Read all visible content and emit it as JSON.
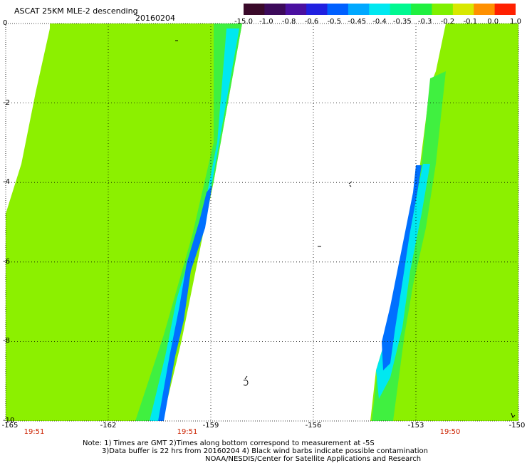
{
  "header": {
    "title": "ASCAT 25KM MLE-2 descending",
    "date": "20160204"
  },
  "colorbar": {
    "labels": [
      "-15.0",
      "-1.0",
      "-0.8",
      "-0.6",
      "-0.5",
      "-0.45",
      "-0.4",
      "-0.35",
      "-0.3",
      "-0.2",
      "-0.1",
      "0.0",
      "1.0"
    ],
    "colors": [
      "#3a0a2a",
      "#3c0a5a",
      "#4a10a0",
      "#2020e0",
      "#0060ff",
      "#00a8ff",
      "#00e8f0",
      "#00f890",
      "#20f040",
      "#80f000",
      "#d8e800",
      "#ff9000",
      "#ff2000"
    ]
  },
  "axes": {
    "y_labels": [
      "0",
      "-2",
      "-4",
      "-6",
      "-8",
      "-10"
    ],
    "x_labels": [
      "-165",
      "-162",
      "-159",
      "-156",
      "-153",
      "-150"
    ],
    "time_labels": [
      "19:51",
      "19:51",
      "19:50"
    ]
  },
  "notes": {
    "line1": "Note: 1) Times are GMT 2)Times along bottom correspond to measurement at -5S",
    "line2": "3)Data buffer is 22 hrs from 20160204 4) Black wind barbs indicate possible contamination",
    "line3": "NOAA/NESDIS/Center for Satellite Applications and Research"
  },
  "palette": {
    "ocean": "#ffffff",
    "swath_main": "#8cf000",
    "swath_alt": "#6ef020",
    "swath_green": "#40f040",
    "edge_cyan": "#00e8f0",
    "edge_blue": "#0070ff",
    "edge_purple": "#4a10a0",
    "grid": "#000000"
  }
}
